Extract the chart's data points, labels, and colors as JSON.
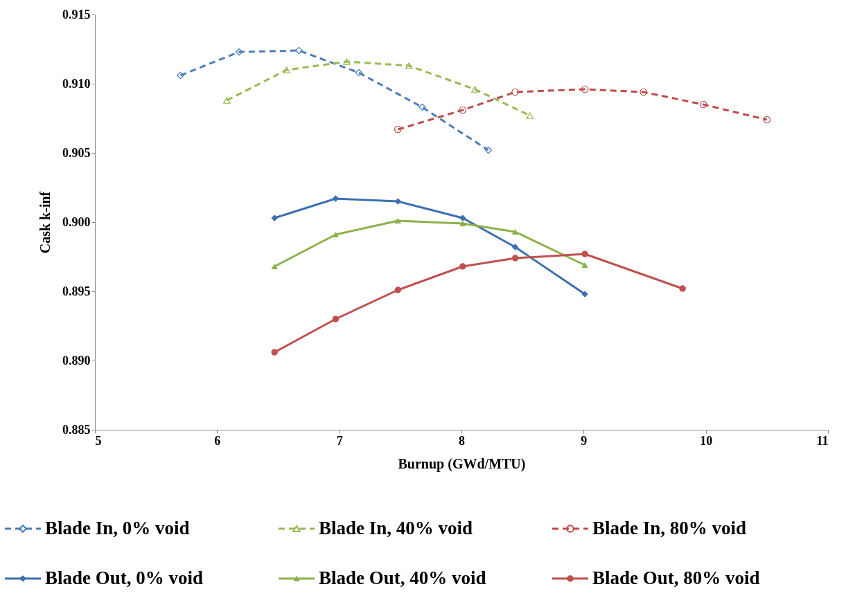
{
  "chart_data": {
    "type": "line",
    "xlabel": "Burnup (GWd/MTU)",
    "ylabel": "Cask k-inf",
    "xlim": [
      5,
      11
    ],
    "xticks": [
      5,
      6,
      7,
      8,
      9,
      10,
      11
    ],
    "ylim": [
      0.885,
      0.915
    ],
    "yticks": [
      {
        "value": 0.885,
        "label": "0.885"
      },
      {
        "value": 0.89,
        "label": "0.890"
      },
      {
        "value": 0.895,
        "label": "0.895"
      },
      {
        "value": 0.9,
        "label": "0.900"
      },
      {
        "value": 0.905,
        "label": "0.905"
      },
      {
        "value": 0.91,
        "label": "0.910"
      },
      {
        "value": 0.915,
        "label": "0.915"
      }
    ],
    "grid": false,
    "legend": "bottom",
    "series": [
      {
        "name": "Blade In, 0% void",
        "color": "#4a7ebb",
        "line_style": "dashed",
        "marker": "diamond",
        "x": [
          5.7,
          6.18,
          6.67,
          7.16,
          7.68,
          8.22
        ],
        "values": [
          0.9106,
          0.9123,
          0.9124,
          0.9108,
          0.9083,
          0.9052
        ]
      },
      {
        "name": "Blade In, 40% void",
        "color": "#98b954",
        "line_style": "dashed",
        "marker": "triangle",
        "x": [
          6.08,
          6.57,
          7.06,
          7.57,
          8.11,
          8.56
        ],
        "values": [
          0.9088,
          0.911,
          0.9116,
          0.9113,
          0.9096,
          0.9077
        ]
      },
      {
        "name": "Blade In, 80% void",
        "color": "#be4b48",
        "line_style": "dashed",
        "marker": "circle",
        "x": [
          7.48,
          8.01,
          8.44,
          9.01,
          9.49,
          9.98,
          10.5
        ],
        "values": [
          0.9067,
          0.9081,
          0.9094,
          0.9096,
          0.9094,
          0.9085,
          0.9074
        ]
      },
      {
        "name": "Blade Out, 0% void",
        "color": "#3b70b0",
        "line_style": "solid",
        "marker": "diamond",
        "x": [
          6.47,
          6.97,
          7.48,
          8.01,
          8.44,
          9.01
        ],
        "values": [
          0.9003,
          0.9017,
          0.9015,
          0.9003,
          0.8982,
          0.8948
        ]
      },
      {
        "name": "Blade Out, 40% void",
        "color": "#8bb14a",
        "line_style": "solid",
        "marker": "triangle",
        "x": [
          6.47,
          6.97,
          7.48,
          8.01,
          8.44,
          9.01
        ],
        "values": [
          0.8968,
          0.8991,
          0.9001,
          0.8999,
          0.8993,
          0.8969
        ]
      },
      {
        "name": "Blade Out, 80% void",
        "color": "#c0504d",
        "line_style": "solid",
        "marker": "circle",
        "x": [
          6.47,
          6.97,
          7.48,
          8.01,
          8.44,
          9.01,
          9.81
        ],
        "values": [
          0.8906,
          0.893,
          0.8951,
          0.8968,
          0.8974,
          0.8977,
          0.8952
        ]
      }
    ]
  }
}
